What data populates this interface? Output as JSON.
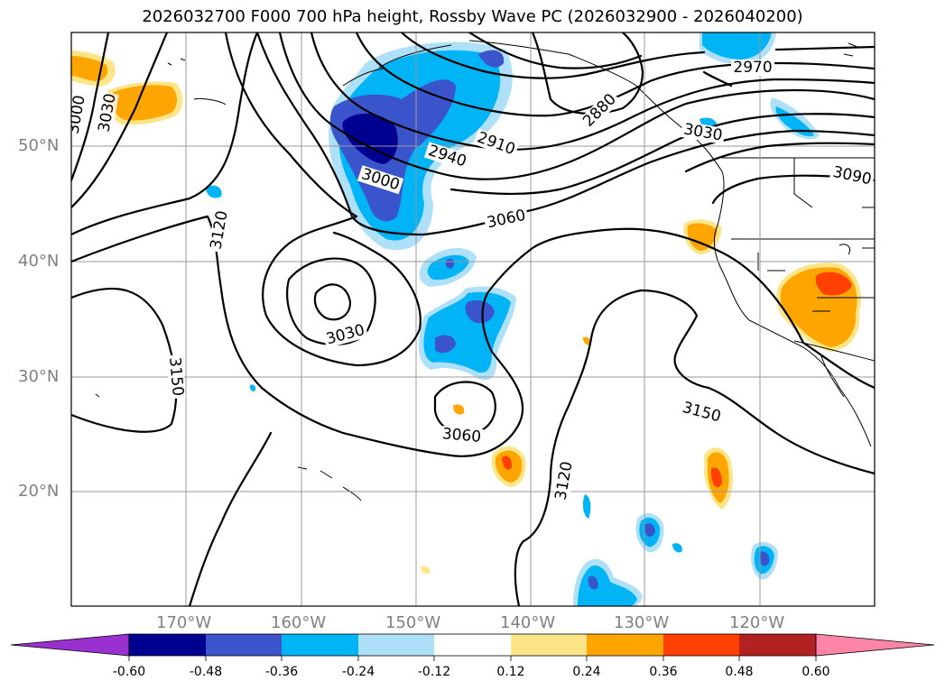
{
  "title": "2026032700 F000 700 hPa height, Rossby Wave PC (2026032900 - 2026040200)",
  "axes": {
    "lon_ticks": [
      "170°W",
      "160°W",
      "150°W",
      "140°W",
      "130°W",
      "120°W"
    ],
    "lat_ticks": [
      "50°N",
      "40°N",
      "30°N",
      "20°N"
    ]
  },
  "contour_labels": [
    {
      "text": "3000",
      "angle": -80
    },
    {
      "text": "3030",
      "angle": -80
    },
    {
      "text": "2970",
      "angle": 0
    },
    {
      "text": "2880",
      "angle": -45
    },
    {
      "text": "2910",
      "angle": 20
    },
    {
      "text": "2940",
      "angle": 18
    },
    {
      "text": "3000",
      "angle": 18
    },
    {
      "text": "3030",
      "angle": 10
    },
    {
      "text": "3090",
      "angle": 12
    },
    {
      "text": "3060",
      "angle": -12
    },
    {
      "text": "3120",
      "angle": -80
    },
    {
      "text": "3030",
      "angle": -15
    },
    {
      "text": "3150",
      "angle": 85
    },
    {
      "text": "3060",
      "angle": 5
    },
    {
      "text": "3150",
      "angle": 15
    },
    {
      "text": "3120",
      "angle": -80
    }
  ],
  "colorbar": {
    "labels": [
      "-0.60",
      "-0.48",
      "-0.36",
      "-0.24",
      "-0.12",
      "0.12",
      "0.24",
      "0.36",
      "0.48",
      "0.60"
    ],
    "colors": [
      "#9b30d0",
      "#000090",
      "#3a55cc",
      "#00b4f5",
      "#aee0fa",
      "#ffffff",
      "#fde68a",
      "#ffa500",
      "#ff4000",
      "#b22222",
      "#ff85a8"
    ]
  }
}
